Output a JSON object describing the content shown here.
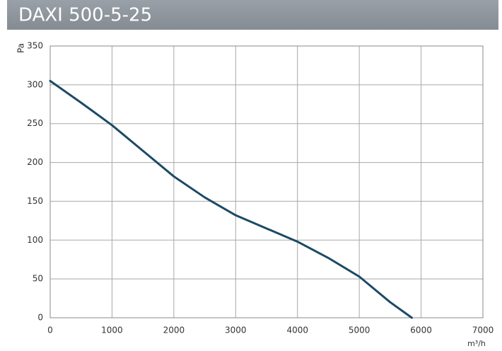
{
  "chart_data": {
    "type": "line",
    "title": "DAXI 500-5-25",
    "x_label": "m³/h",
    "y_label": "Pa",
    "x": [
      0,
      500,
      1000,
      1500,
      2000,
      2500,
      3000,
      3500,
      4000,
      4500,
      5000,
      5500,
      5850
    ],
    "series": [
      {
        "name": "DAXI 500-5-25",
        "color": "#1c4a66",
        "values": [
          305,
          277,
          248,
          215,
          182,
          155,
          132,
          115,
          98,
          77,
          53,
          20,
          0
        ]
      }
    ],
    "xlim": [
      0,
      7000
    ],
    "xticks": [
      0,
      1000,
      2000,
      3000,
      4000,
      5000,
      6000,
      7000
    ],
    "ylim": [
      0,
      350
    ],
    "yticks": [
      0,
      50,
      100,
      150,
      200,
      250,
      300,
      350
    ],
    "grid": true
  }
}
